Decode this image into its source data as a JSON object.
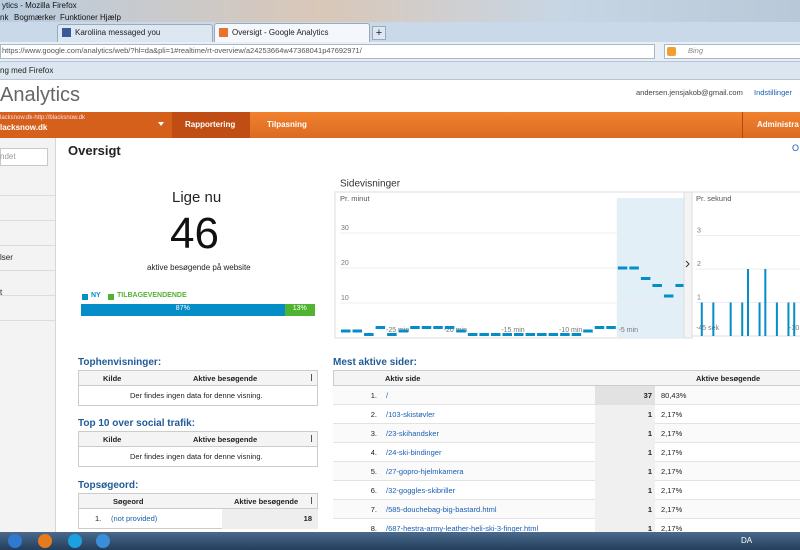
{
  "browser": {
    "window_title": "ytics - Mozilla Firefox",
    "menu": [
      "nk",
      "Bogmærker",
      "Funktioner",
      "Hjælp"
    ],
    "tabs": [
      "Karoliina messaged you",
      "Oversigt - Google Analytics"
    ],
    "new_tab": "+",
    "url": "https://www.google.com/analytics/web/?hl=da&pli=1#realtime/rt-overview/a24253664w47368041p47692971/",
    "search": "Bing",
    "bookmark": "ng med Firefox",
    "taskbar_lang": "DA"
  },
  "header": {
    "product": "Analytics",
    "email": "andersen.jensjakob@gmail.com",
    "settings": "Indstillinger"
  },
  "nav": {
    "account_url": "lacksnow.dk-http://blacksnow.dk",
    "account": "lacksnow.dk",
    "tabs": [
      "Rapportering",
      "Tilpasning",
      "Administra"
    ]
  },
  "sidebar": {
    "search": "ndet",
    "items": [
      "lser",
      "t"
    ]
  },
  "page": {
    "title": "Oversigt",
    "corner": "O"
  },
  "now": {
    "title": "Lige nu",
    "count": 46,
    "caption": "aktive besøgende på website",
    "legend": [
      {
        "name": "NY",
        "color": "#058dc7"
      },
      {
        "name": "TILBAGEVENDENDE",
        "color": "#50b432"
      }
    ],
    "split": [
      {
        "value": 87,
        "label": "87%"
      },
      {
        "value": 13,
        "label": "13%"
      }
    ]
  },
  "pageviews": {
    "title": "Sidevisninger",
    "per_minute": {
      "type": "step",
      "label": "Pr. minut",
      "color": "#058dc7",
      "xlim": [
        -30,
        0
      ],
      "ylim": [
        0,
        40
      ],
      "yticks": [
        10,
        20,
        30
      ],
      "xticks": [
        {
          "value": -25,
          "label": "-25 min"
        },
        {
          "value": -20,
          "label": "-20 min"
        },
        {
          "value": -15,
          "label": "-15 min"
        },
        {
          "value": -10,
          "label": "-10 min"
        },
        {
          "value": -5,
          "label": "-5 min"
        }
      ],
      "x": [
        -30,
        -29,
        -28,
        -27,
        -26,
        -25,
        -24,
        -23,
        -22,
        -21,
        -20,
        -19,
        -18,
        -17,
        -16,
        -15,
        -14,
        -13,
        -12,
        -11,
        -10,
        -9,
        -8,
        -7,
        -6,
        -5,
        -4,
        -3,
        -2,
        -1
      ],
      "values": [
        2,
        2,
        1,
        3,
        1,
        2,
        3,
        3,
        3,
        3,
        2,
        1,
        1,
        1,
        1,
        1,
        1,
        1,
        1,
        1,
        1,
        2,
        3,
        3,
        20,
        20,
        17,
        15,
        12,
        15
      ]
    },
    "per_second": {
      "type": "bar",
      "label": "Pr. sekund",
      "color": "#058dc7",
      "xlim": [
        -47,
        -29
      ],
      "ylim": [
        0,
        4
      ],
      "yticks": [
        1,
        2,
        3
      ],
      "xticks": [
        {
          "value": -45,
          "label": "-45 sek"
        },
        {
          "value": -30,
          "label": "-30"
        }
      ],
      "x": [
        -46,
        -44,
        -41,
        -39,
        -38,
        -36,
        -35,
        -33,
        -31,
        -30
      ],
      "values": [
        1,
        1,
        1,
        1,
        2,
        1,
        2,
        1,
        1,
        1
      ]
    }
  },
  "tables": [
    {
      "title": "Tophenvisninger:",
      "columns": [
        "Kilde",
        "Aktive besøgende"
      ],
      "empty": "Der findes ingen data for denne visning."
    },
    {
      "title": "Top 10 over social trafik:",
      "columns": [
        "Kilde",
        "Aktive besøgende"
      ],
      "empty": "Der findes ingen data for denne visning."
    },
    {
      "title": "Topsøgeord:",
      "columns": [
        "Søgeord",
        "Aktive besøgende"
      ],
      "rows": [
        [
          "1.",
          "(not provided)",
          18
        ]
      ]
    }
  ],
  "top_pages": {
    "title": "Mest aktive sider:",
    "columns": [
      "Aktiv side",
      "Aktive besøgende"
    ],
    "rows": [
      [
        "1.",
        "/",
        37,
        "80,43%"
      ],
      [
        "2.",
        "/103-skistøvler",
        1,
        "2,17%"
      ],
      [
        "3.",
        "/23-skihandsker",
        1,
        "2,17%"
      ],
      [
        "4.",
        "/24-ski-bindinger",
        1,
        "2,17%"
      ],
      [
        "5.",
        "/27-gopro-hjelmkamera",
        1,
        "2,17%"
      ],
      [
        "6.",
        "/32-goggles-skibriller",
        1,
        "2,17%"
      ],
      [
        "7.",
        "/585-douchebag-big-bastard.html",
        1,
        "2,17%"
      ],
      [
        "8.",
        "/687-hestra-army-leather-heli-ski-3-finger.html",
        1,
        "2,17%"
      ]
    ]
  }
}
